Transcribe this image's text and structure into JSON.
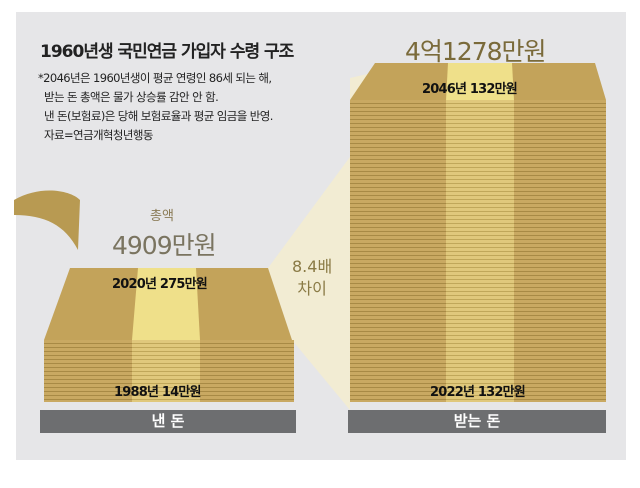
{
  "title": "1960년생 국민연금 가입자 수령 구조",
  "notes": [
    "*2046년은 1960년생이 평균 연령인 86세 되는 해,",
    "받는 돈 총액은 물가 상승률 감안 안 함.",
    "낸 돈(보험료)은 당해 보험료율과 평균 임금을 반영.",
    "자료=연금개혁청년행동"
  ],
  "paid": {
    "total_label": "총액",
    "total": "4909만원",
    "top_year": "2020년",
    "top_amount": "275만원",
    "bottom_year": "1988년",
    "bottom_amount": "14만원",
    "bar_label": "낸 돈"
  },
  "received": {
    "total": "4억1278만원",
    "top_year": "2046년",
    "top_amount": "132만원",
    "bottom_year": "2022년",
    "bottom_amount": "132만원",
    "bar_label": "받는 돈"
  },
  "ratio": [
    "8.4배",
    "차이"
  ],
  "chart_data": {
    "type": "bar",
    "title": "1960년생 국민연금 가입자 수령 구조",
    "categories": [
      "낸 돈",
      "받는 돈"
    ],
    "values": [
      4909,
      41278
    ],
    "unit": "만원",
    "ratio": 8.4
  }
}
